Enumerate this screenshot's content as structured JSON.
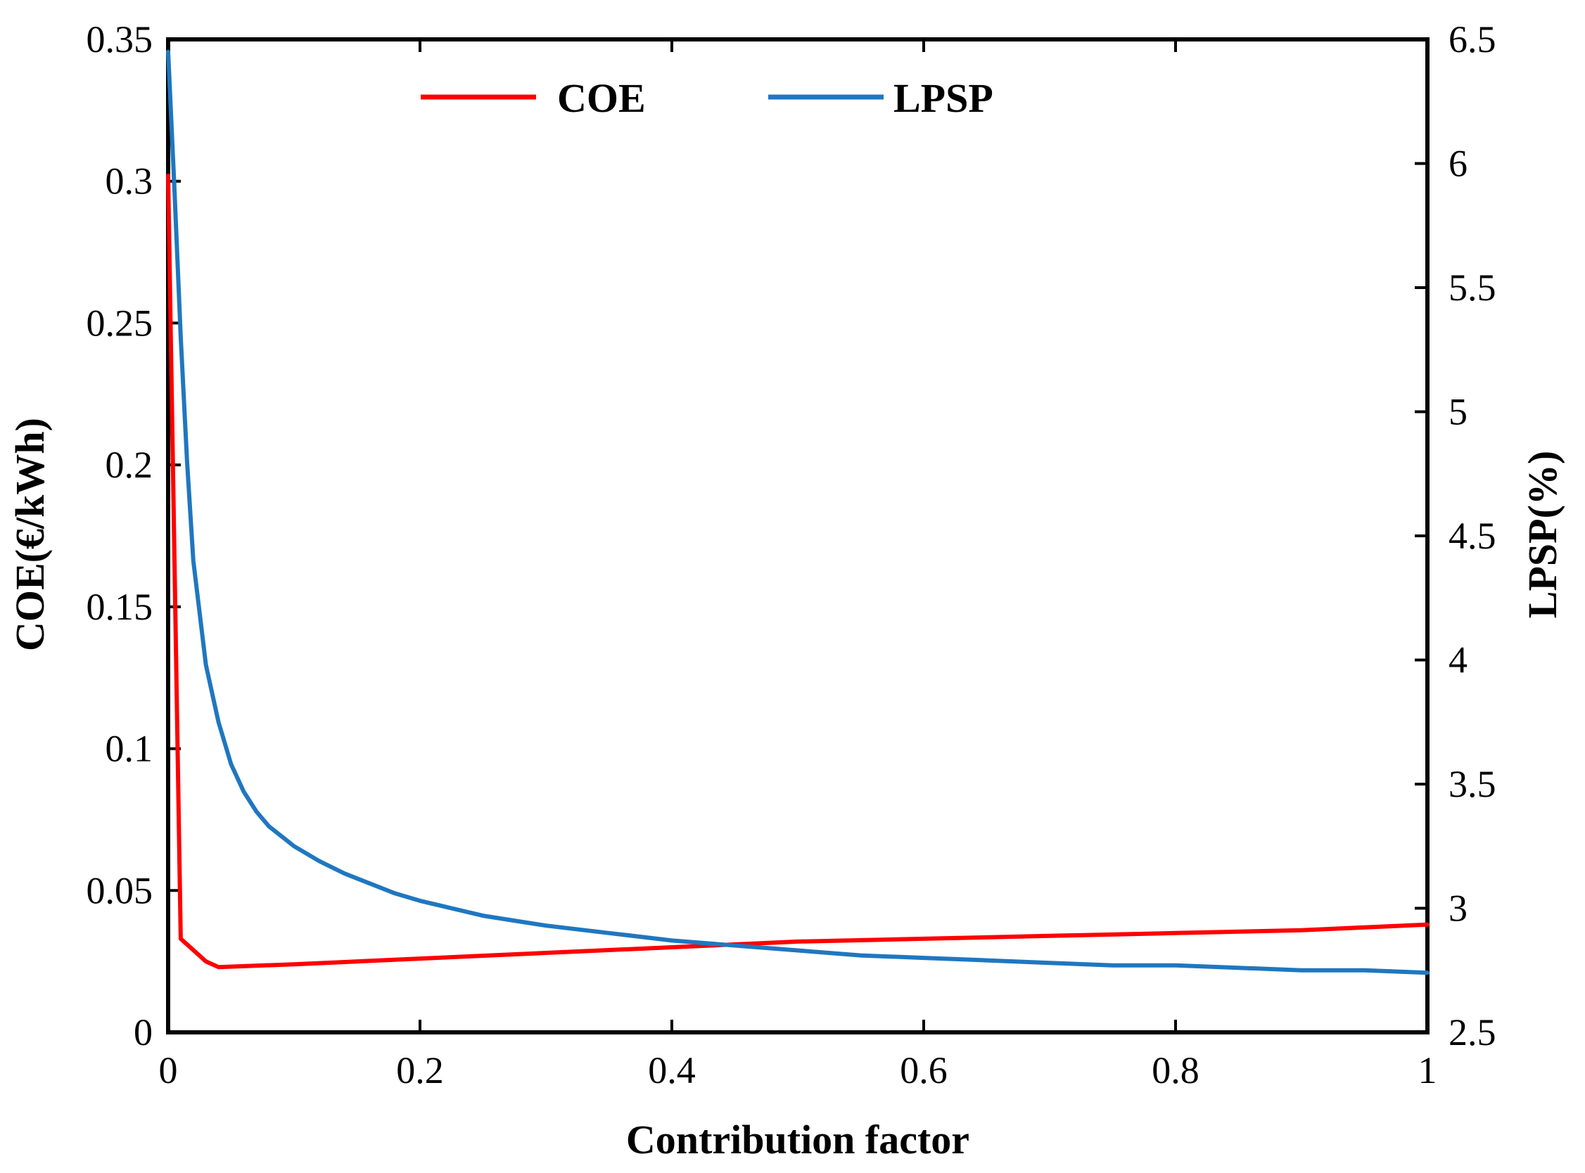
{
  "chart_data": {
    "type": "line",
    "title": "",
    "xlabel": "Contribution factor",
    "ylabel_left": "COE(€/kWh)",
    "ylabel_right": "LPSP(%)",
    "xlim": [
      0,
      1
    ],
    "ylim_left": [
      0,
      0.35
    ],
    "ylim_right": [
      2.5,
      6.5
    ],
    "xticks": [
      "0",
      "0.2",
      "0.4",
      "0.6",
      "0.8",
      "1"
    ],
    "yticks_left": [
      "0",
      "0.05",
      "0.1",
      "0.15",
      "0.2",
      "0.25",
      "0.3",
      "0.35"
    ],
    "yticks_right": [
      "2.5",
      "3",
      "3.5",
      "4",
      "4.5",
      "5",
      "5.5",
      "6",
      "6.5"
    ],
    "grid": false,
    "legend_position": "top",
    "series": [
      {
        "name": "COE",
        "axis": "left",
        "color": "#ff0000",
        "x": [
          0,
          0.01,
          0.02,
          0.03,
          0.04,
          0.1,
          0.2,
          0.3,
          0.4,
          0.5,
          0.6,
          0.7,
          0.8,
          0.9,
          1.0
        ],
        "y": [
          0.302,
          0.033,
          0.029,
          0.025,
          0.023,
          0.024,
          0.026,
          0.028,
          0.03,
          0.032,
          0.033,
          0.034,
          0.035,
          0.036,
          0.038
        ]
      },
      {
        "name": "LPSP",
        "axis": "right",
        "color": "#1f77c0",
        "x": [
          0,
          0.005,
          0.01,
          0.015,
          0.02,
          0.03,
          0.04,
          0.05,
          0.06,
          0.07,
          0.08,
          0.09,
          0.1,
          0.12,
          0.14,
          0.16,
          0.18,
          0.2,
          0.25,
          0.3,
          0.35,
          0.4,
          0.45,
          0.5,
          0.55,
          0.6,
          0.65,
          0.7,
          0.75,
          0.8,
          0.85,
          0.9,
          0.95,
          1.0
        ],
        "y": [
          6.45,
          5.9,
          5.3,
          4.8,
          4.4,
          3.98,
          3.75,
          3.58,
          3.47,
          3.39,
          3.33,
          3.29,
          3.25,
          3.19,
          3.14,
          3.1,
          3.06,
          3.03,
          2.97,
          2.93,
          2.9,
          2.87,
          2.85,
          2.83,
          2.81,
          2.8,
          2.79,
          2.78,
          2.77,
          2.77,
          2.76,
          2.75,
          2.75,
          2.74
        ]
      }
    ]
  }
}
